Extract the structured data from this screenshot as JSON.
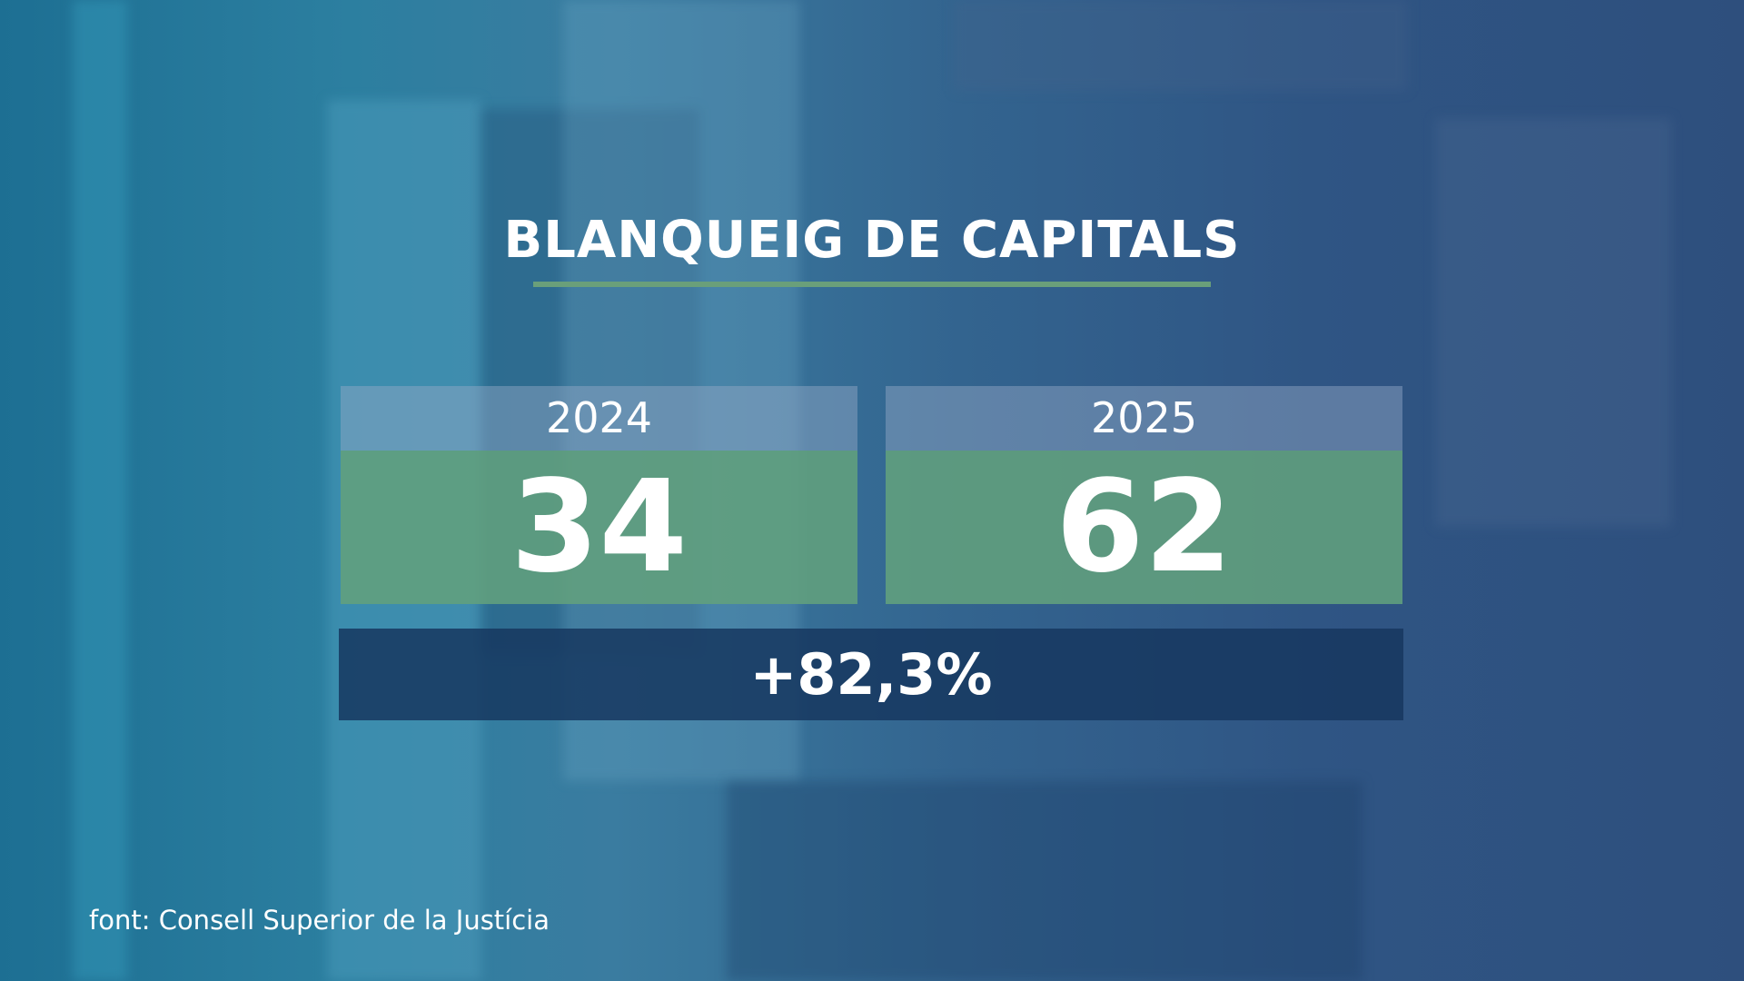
{
  "header": {
    "title": "BLANQUEIG DE CAPITALS"
  },
  "cards": [
    {
      "year": "2024",
      "value": 34
    },
    {
      "year": "2025",
      "value": 62
    }
  ],
  "change": "+82,3%",
  "source": "font: Consell Superior de la Justícia"
}
